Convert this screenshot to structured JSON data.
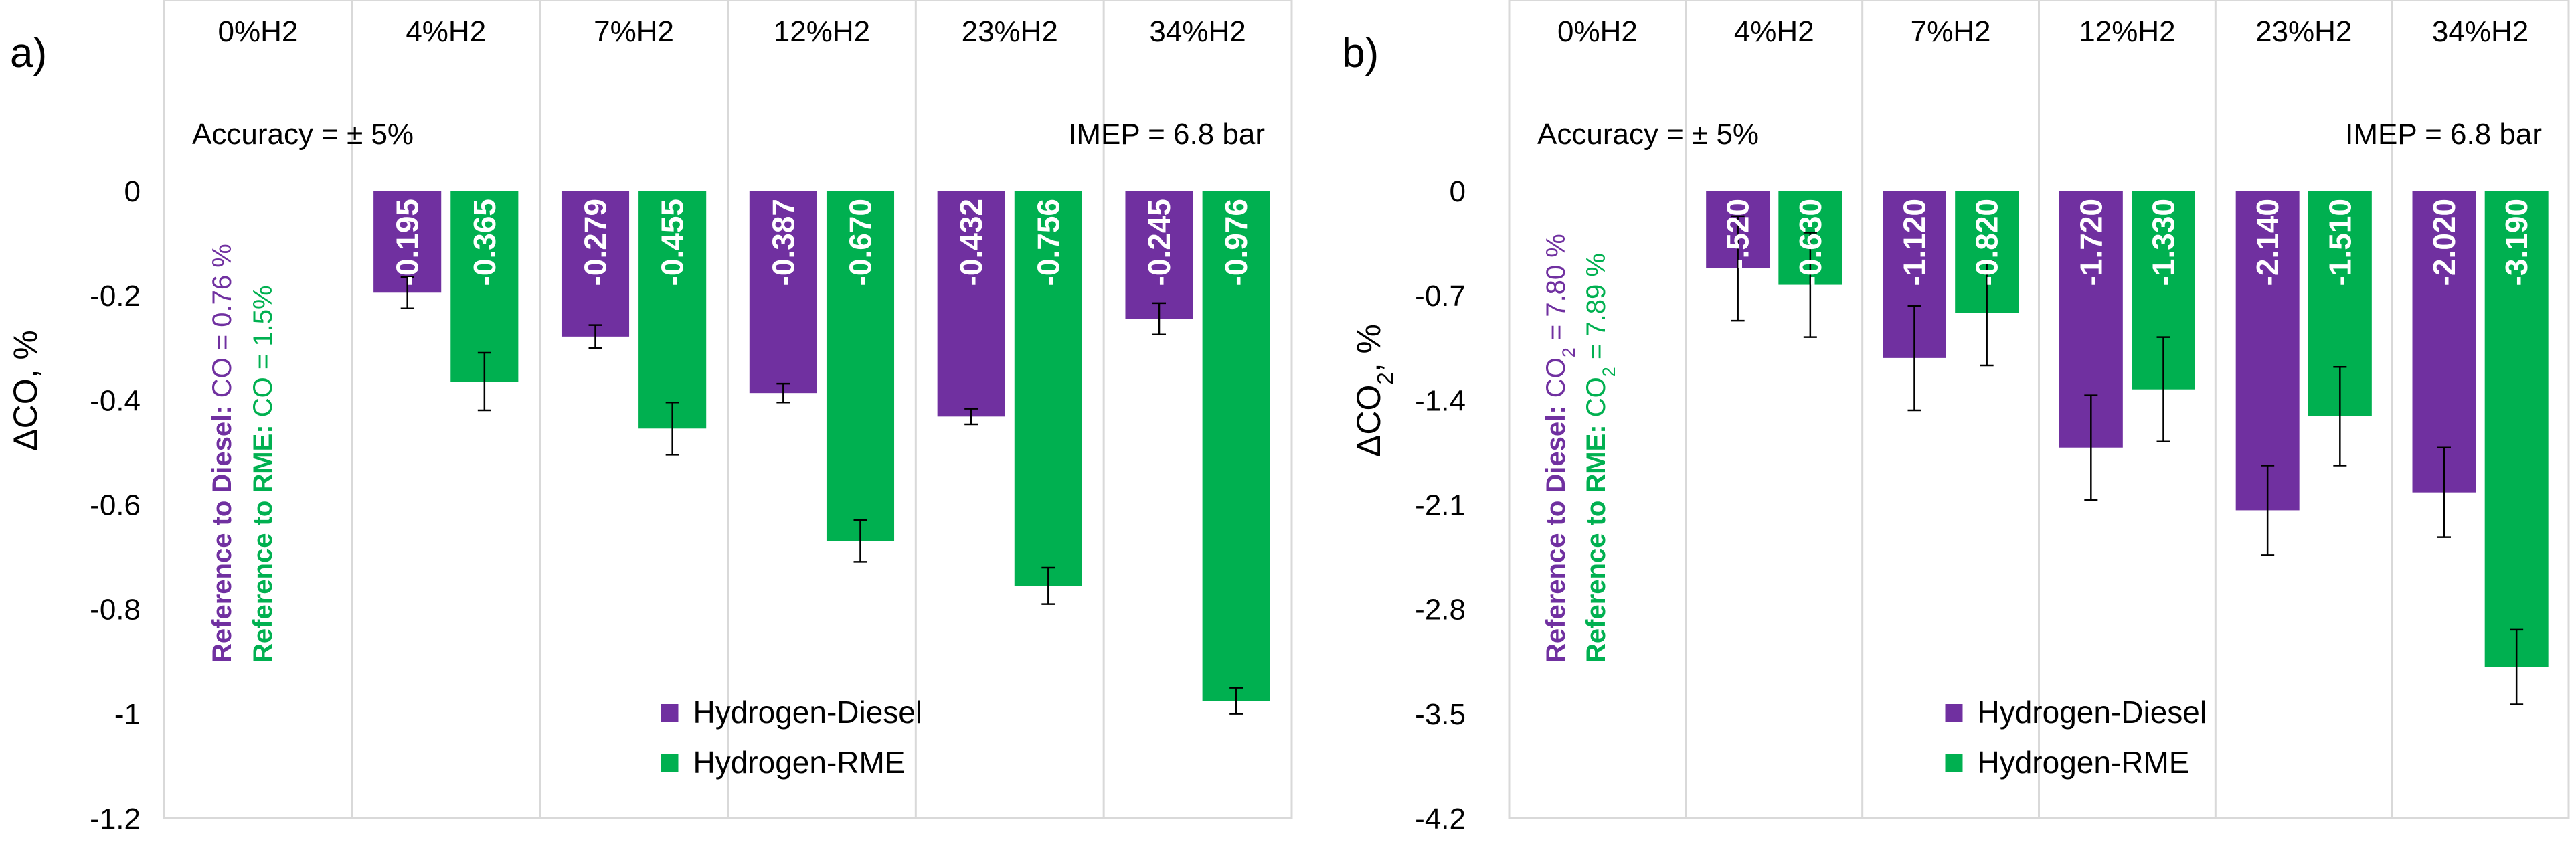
{
  "colors": {
    "diesel": "#7030A0",
    "rme": "#00B050",
    "grid": "#D9D9D9",
    "text": "#000000",
    "bar_label": "#FFFFFF"
  },
  "chart_data": [
    {
      "panel_label": "a)",
      "type": "bar",
      "categories": [
        "0%H2",
        "4%H2",
        "7%H2",
        "12%H2",
        "23%H2",
        "34%H2"
      ],
      "ylabel": "ΔCO, %",
      "ylim": [
        -1.2,
        0.2
      ],
      "yticks": [
        0,
        -0.2,
        -0.4,
        -0.6,
        -0.8,
        -1,
        -1.2
      ],
      "ytick_labels": [
        "0",
        "-0.2",
        "-0.4",
        "-0.6",
        "-0.8",
        "-1",
        "-1.2"
      ],
      "grid": "vertical category separators",
      "legend_position": "bottom-center inside plot",
      "series": [
        {
          "name": "Hydrogen-Diesel",
          "values": [
            null,
            -0.195,
            -0.279,
            -0.387,
            -0.432,
            -0.245
          ],
          "labels": [
            "",
            "-0.195",
            "-0.279",
            "-0.387",
            "-0.432",
            "-0.245"
          ],
          "errors": [
            null,
            0.03,
            0.022,
            0.018,
            0.015,
            0.03
          ]
        },
        {
          "name": "Hydrogen-RME",
          "values": [
            null,
            -0.365,
            -0.455,
            -0.67,
            -0.756,
            -0.976
          ],
          "labels": [
            "",
            "-0.365",
            "-0.455",
            "-0.670",
            "-0.756",
            "-0.976"
          ],
          "errors": [
            null,
            0.055,
            0.05,
            0.04,
            0.035,
            0.025
          ]
        }
      ],
      "annotations": {
        "accuracy": "Accuracy = ± 5%",
        "imep": "IMEP = 6.8 bar",
        "ref_diesel_prefix": "Reference to Diesel:",
        "ref_diesel_value": "CO = 0.76 %",
        "ref_rme_prefix": "Reference to RME:",
        "ref_rme_value": "CO = 1.5%"
      }
    },
    {
      "panel_label": "b)",
      "type": "bar",
      "categories": [
        "0%H2",
        "4%H2",
        "7%H2",
        "12%H2",
        "23%H2",
        "34%H2"
      ],
      "ylabel": "ΔCO2, %",
      "ylim": [
        -4.2,
        0.7
      ],
      "yticks": [
        0,
        -0.7,
        -1.4,
        -2.1,
        -2.8,
        -3.5,
        -4.2
      ],
      "ytick_labels": [
        "0",
        "-0.7",
        "-1.4",
        "-2.1",
        "-2.8",
        "-3.5",
        "-4.2"
      ],
      "grid": "vertical category separators",
      "legend_position": "bottom-center inside plot",
      "series": [
        {
          "name": "Hydrogen-Diesel",
          "values": [
            null,
            -0.52,
            -1.12,
            -1.72,
            -2.14,
            -2.02
          ],
          "labels": [
            "",
            "-.520",
            "-1.120",
            "-1.720",
            "-2.140",
            "-2.020"
          ],
          "errors": [
            null,
            0.35,
            0.35,
            0.35,
            0.3,
            0.3
          ]
        },
        {
          "name": "Hydrogen-RME",
          "values": [
            null,
            -0.63,
            -0.82,
            -1.33,
            -1.51,
            -3.19
          ],
          "labels": [
            "",
            "-0.630",
            "-0.820",
            "-1.330",
            "-1.510",
            "-3.190"
          ],
          "errors": [
            null,
            0.35,
            0.35,
            0.35,
            0.33,
            0.25
          ]
        }
      ],
      "annotations": {
        "accuracy": "Accuracy = ± 5%",
        "imep": "IMEP = 6.8 bar",
        "ref_diesel_prefix": "Reference to Diesel:",
        "ref_diesel_value": "CO2 = 7.80 %",
        "ref_rme_prefix": "Reference to RME:",
        "ref_rme_value": "CO2 = 7.89 %"
      }
    }
  ]
}
